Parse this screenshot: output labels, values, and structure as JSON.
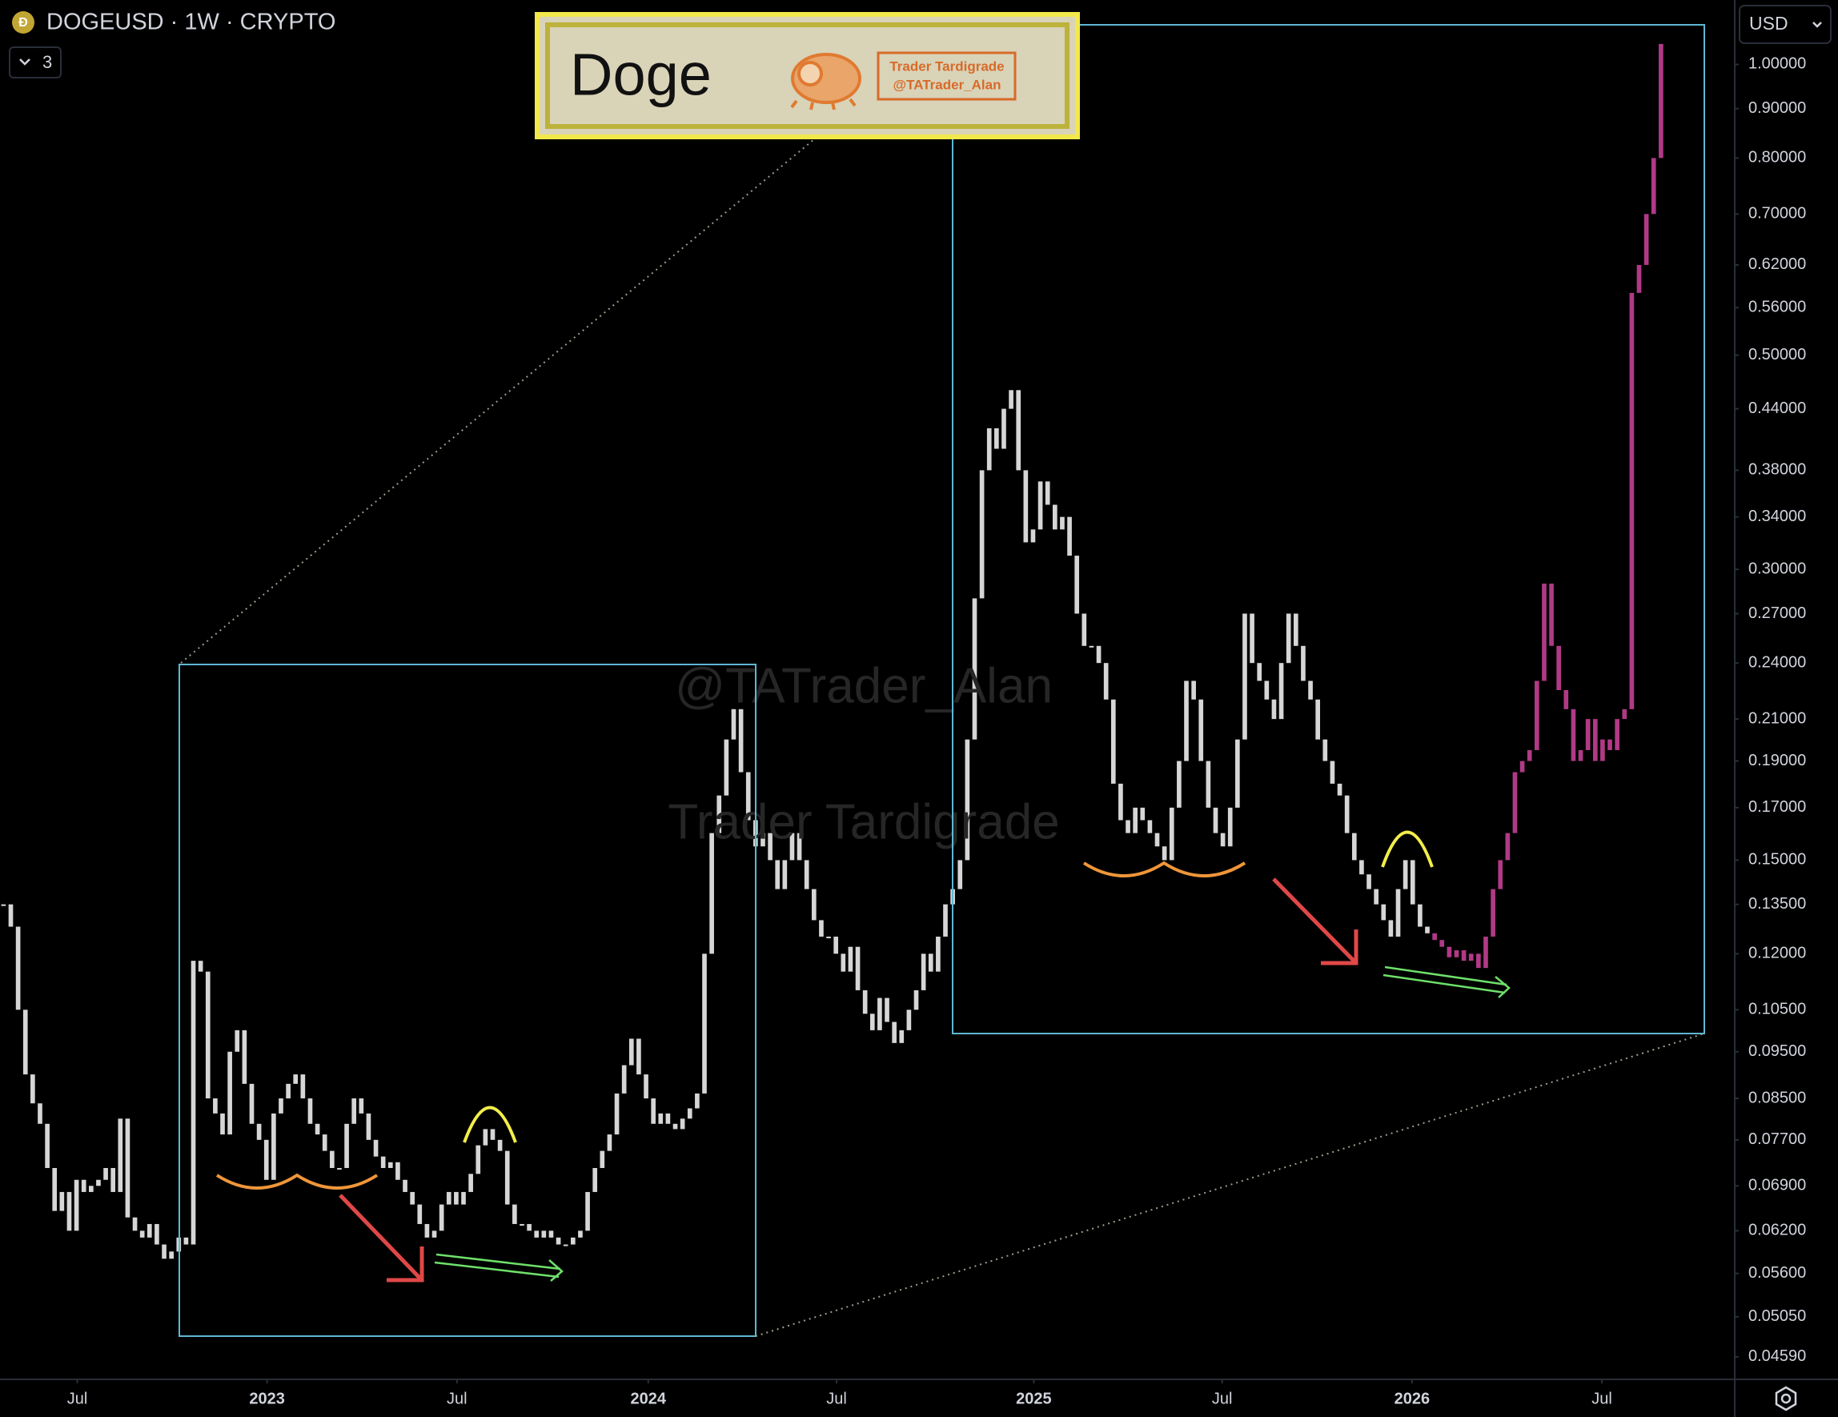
{
  "chart_data": {
    "type": "candlestick",
    "title": "DOGEUSD · 1W · CRYPTO",
    "indicator_count": "3",
    "currency": "USD",
    "annotations": [
      "Doge",
      "Trader Tardigrade",
      "@TATrader_Alan",
      "@TATrader_Alan",
      "Trader Tardigrade"
    ],
    "log_y": true,
    "xlim": [
      -0.48,
      237.1
    ],
    "xticks": [
      {
        "value": 10.1,
        "label": "Jul"
      },
      {
        "value": 36.1,
        "label": "2023"
      },
      {
        "value": 62.1,
        "label": "Jul"
      },
      {
        "value": 88.3,
        "label": "2024"
      },
      {
        "value": 114.1,
        "label": "Jul"
      },
      {
        "value": 141.1,
        "label": "2025"
      },
      {
        "value": 166.9,
        "label": "Jul"
      },
      {
        "value": 192.9,
        "label": "2026"
      },
      {
        "value": 218.9,
        "label": "Jul"
      }
    ],
    "ylim": [
      0.0435,
      1.166
    ],
    "yticks": [
      {
        "value": 1.0,
        "label": "1.00000"
      },
      {
        "value": 0.9,
        "label": "0.90000"
      },
      {
        "value": 0.8,
        "label": "0.80000"
      },
      {
        "value": 0.7,
        "label": "0.70000"
      },
      {
        "value": 0.62,
        "label": "0.62000"
      },
      {
        "value": 0.56,
        "label": "0.56000"
      },
      {
        "value": 0.5,
        "label": "0.50000"
      },
      {
        "value": 0.44,
        "label": "0.44000"
      },
      {
        "value": 0.38,
        "label": "0.38000"
      },
      {
        "value": 0.34,
        "label": "0.34000"
      },
      {
        "value": 0.3,
        "label": "0.30000"
      },
      {
        "value": 0.27,
        "label": "0.27000"
      },
      {
        "value": 0.24,
        "label": "0.24000"
      },
      {
        "value": 0.21,
        "label": "0.21000"
      },
      {
        "value": 0.19,
        "label": "0.19000"
      },
      {
        "value": 0.17,
        "label": "0.17000"
      },
      {
        "value": 0.15,
        "label": "0.15000"
      },
      {
        "value": 0.135,
        "label": "0.13500"
      },
      {
        "value": 0.12,
        "label": "0.12000"
      },
      {
        "value": 0.105,
        "label": "0.10500"
      },
      {
        "value": 0.095,
        "label": "0.09500"
      },
      {
        "value": 0.085,
        "label": "0.08500"
      },
      {
        "value": 0.077,
        "label": "0.07700"
      },
      {
        "value": 0.069,
        "label": "0.06900"
      },
      {
        "value": 0.062,
        "label": "0.06200"
      },
      {
        "value": 0.056,
        "label": "0.05600"
      },
      {
        "value": 0.0505,
        "label": "0.05050"
      },
      {
        "value": 0.0459,
        "label": "0.04590"
      }
    ],
    "series": [
      {
        "color": "#d6d6d6",
        "values": [
          0.135,
          0.128,
          0.105,
          0.09,
          0.084,
          0.08,
          0.072,
          0.065,
          0.068,
          0.062,
          0.07,
          0.068,
          0.069,
          0.07,
          0.072,
          0.068,
          0.081,
          0.064,
          0.062,
          0.061,
          0.063,
          0.06,
          0.058,
          0.059,
          0.061,
          0.06,
          0.118,
          0.115,
          0.085,
          0.082,
          0.078,
          0.095,
          0.1,
          0.088,
          0.08,
          0.077,
          0.07,
          0.082,
          0.085,
          0.088,
          0.09,
          0.085,
          0.08,
          0.078,
          0.075,
          0.072,
          0.072,
          0.08,
          0.085,
          0.082,
          0.077,
          0.074,
          0.072,
          0.073,
          0.07,
          0.068,
          0.066,
          0.063,
          0.061,
          0.062,
          0.066,
          0.068,
          0.066,
          0.068,
          0.071,
          0.076,
          0.079,
          0.077,
          0.075,
          0.066,
          0.063,
          0.063,
          0.062,
          0.061,
          0.062,
          0.061,
          0.06,
          0.06,
          0.061,
          0.062,
          0.068,
          0.072,
          0.075,
          0.078,
          0.086,
          0.092,
          0.098,
          0.09,
          0.085,
          0.08,
          0.082,
          0.08,
          0.079,
          0.081,
          0.083,
          0.086,
          0.12,
          0.16,
          0.175,
          0.2,
          0.215,
          0.185,
          0.165,
          0.155,
          0.16,
          0.15,
          0.14,
          0.15,
          0.16,
          0.15,
          0.14,
          0.13,
          0.125,
          0.125,
          0.12,
          0.115,
          0.122,
          0.11,
          0.104,
          0.1,
          0.108,
          0.102,
          0.097,
          0.1,
          0.105,
          0.11,
          0.12,
          0.115,
          0.125,
          0.135,
          0.14,
          0.15,
          0.2,
          0.28,
          0.38,
          0.42,
          0.4,
          0.44,
          0.46,
          0.38,
          0.32,
          0.33,
          0.37,
          0.35,
          0.33,
          0.34,
          0.31,
          0.27,
          0.25,
          0.25,
          0.24,
          0.22,
          0.18,
          0.165,
          0.16,
          0.17,
          0.165,
          0.16,
          0.155,
          0.15,
          0.17,
          0.19,
          0.23,
          0.22,
          0.19,
          0.17,
          0.16,
          0.155,
          0.17,
          0.2,
          0.27,
          0.24,
          0.23,
          0.22,
          0.21,
          0.24,
          0.27,
          0.25,
          0.23,
          0.22,
          0.2,
          0.19,
          0.18,
          0.175,
          0.16,
          0.15,
          0.145,
          0.14,
          0.135,
          0.13,
          0.125,
          0.14,
          0.15,
          0.135,
          0.128,
          0.126,
          null,
          null,
          null,
          null,
          null,
          null,
          null,
          null,
          null,
          null,
          null,
          null,
          null,
          null,
          null,
          null,
          null,
          null,
          null,
          null,
          null,
          null,
          null,
          null,
          null,
          null,
          null,
          null,
          null,
          null,
          null,
          null
        ]
      },
      {
        "color": "#b03a86",
        "values": [
          null,
          null,
          null,
          null,
          null,
          null,
          null,
          null,
          null,
          null,
          null,
          null,
          null,
          null,
          null,
          null,
          null,
          null,
          null,
          null,
          null,
          null,
          null,
          null,
          null,
          null,
          null,
          null,
          null,
          null,
          null,
          null,
          null,
          null,
          null,
          null,
          null,
          null,
          null,
          null,
          null,
          null,
          null,
          null,
          null,
          null,
          null,
          null,
          null,
          null,
          null,
          null,
          null,
          null,
          null,
          null,
          null,
          null,
          null,
          null,
          null,
          null,
          null,
          null,
          null,
          null,
          null,
          null,
          null,
          null,
          null,
          null,
          null,
          null,
          null,
          null,
          null,
          null,
          null,
          null,
          null,
          null,
          null,
          null,
          null,
          null,
          null,
          null,
          null,
          null,
          null,
          null,
          null,
          null,
          null,
          null,
          null,
          null,
          null,
          null,
          null,
          null,
          null,
          null,
          null,
          null,
          null,
          null,
          null,
          null,
          null,
          null,
          null,
          null,
          null,
          null,
          null,
          null,
          null,
          null,
          null,
          null,
          null,
          null,
          null,
          null,
          null,
          null,
          null,
          null,
          null,
          null,
          null,
          null,
          null,
          null,
          null,
          null,
          null,
          null,
          null,
          null,
          null,
          null,
          null,
          null,
          null,
          null,
          null,
          null,
          null,
          null,
          null,
          null,
          null,
          null,
          null,
          null,
          null,
          null,
          null,
          null,
          null,
          null,
          null,
          null,
          null,
          null,
          null,
          null,
          null,
          null,
          null,
          null,
          null,
          null,
          null,
          null,
          null,
          null,
          null,
          null,
          null,
          null,
          null,
          null,
          null,
          null,
          null,
          null,
          null,
          null,
          null,
          null,
          null,
          null,
          0.124,
          0.122,
          0.119,
          0.121,
          0.118,
          0.12,
          0.116,
          0.125,
          0.14,
          0.15,
          0.16,
          0.185,
          0.19,
          0.195,
          0.23,
          0.29,
          0.25,
          0.225,
          0.215,
          0.19,
          0.195,
          0.21,
          0.19,
          0.2,
          0.195,
          0.21,
          0.215,
          0.58,
          0.62,
          0.7,
          0.8,
          1.05
        ]
      }
    ]
  }
}
